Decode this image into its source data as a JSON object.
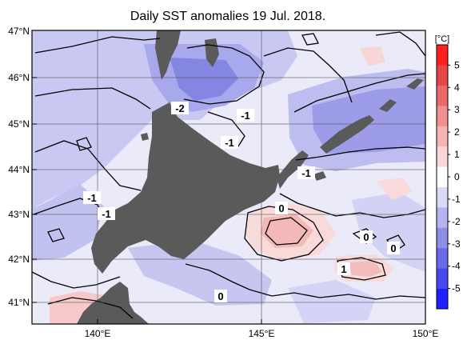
{
  "title": "Daily SST anomalies 19 Jul. 2018.",
  "map": {
    "lat_labels": [
      "47°N",
      "46°N",
      "45°N",
      "44°N",
      "43°N",
      "42°N",
      "41°N"
    ],
    "lon_labels": [
      "140°E",
      "145°E",
      "150°E"
    ],
    "lon_range": [
      138,
      150
    ],
    "lat_range": [
      40.6,
      47
    ],
    "land_color": "#5a5a5a",
    "contour_labels": [
      "-2",
      "-1",
      "-1",
      "-1",
      "-1",
      "-1",
      "0",
      "0",
      "0",
      "1",
      "0"
    ]
  },
  "colorbar": {
    "unit": "[°C]",
    "ticks": [
      "5",
      "4",
      "3",
      "2",
      "1",
      "0",
      "-1",
      "-2",
      "-3",
      "-4",
      "-5"
    ],
    "colors": [
      "#2020ff",
      "#4848f0",
      "#6a6ae8",
      "#8e8ee8",
      "#b4b4f0",
      "#dadaf8",
      "#ffffff",
      "#fad8d8",
      "#f5b4b4",
      "#f09090",
      "#ea6a6a",
      "#e64646",
      "#ff2020"
    ]
  }
}
